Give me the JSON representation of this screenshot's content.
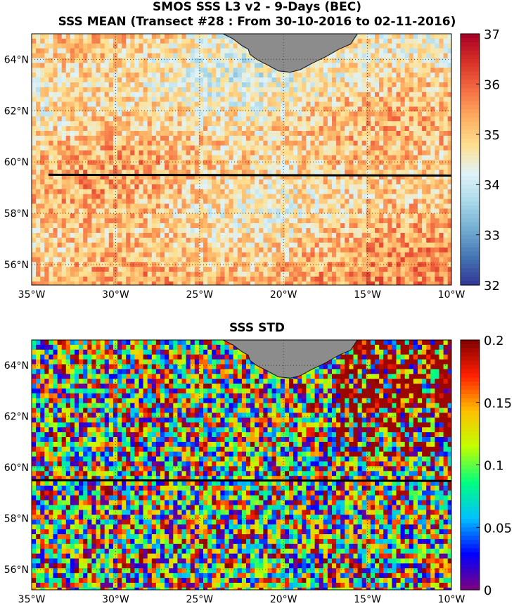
{
  "top_panel": {
    "title_line1": "SMOS SSS L3 v2 - 9-Days (BEC)",
    "title_line2": "SSS MEAN (Transect #28 : From 30-10-2016 to 02-11-2016)",
    "colorbar_ticks": [
      "32",
      "33",
      "34",
      "35",
      "36",
      "37"
    ],
    "colorbar_range": [
      32,
      37
    ],
    "colormap": "RdYlBu_r",
    "colormap_stops": [
      "#313695",
      "#4575b4",
      "#74add1",
      "#abd9e9",
      "#e0f3f8",
      "#fee090",
      "#fdae61",
      "#f46d43",
      "#d73027",
      "#a50026"
    ]
  },
  "bottom_panel": {
    "title": "SSS STD",
    "colorbar_ticks": [
      "0",
      "0.05",
      "0.1",
      "0.15",
      "0.2"
    ],
    "colorbar_range": [
      0,
      0.2
    ],
    "colormap": "jet",
    "colormap_stops": [
      "#7f007f",
      "#0000ff",
      "#00c0ff",
      "#00ff80",
      "#c0ff00",
      "#ffc000",
      "#ff2000",
      "#800000"
    ]
  },
  "map": {
    "lon_labels": [
      "35°W",
      "30°W",
      "25°W",
      "20°W",
      "15°W",
      "10°W"
    ],
    "lat_labels": [
      "64°N",
      "62°N",
      "60°N",
      "58°N",
      "56°N"
    ],
    "lon_range": [
      -35,
      -10
    ],
    "lat_range": [
      55.2,
      65
    ],
    "transect_latitude": 59.5,
    "transect_lon_start": -34,
    "land_color": "#8c8c8c",
    "grid_style": "dotted"
  }
}
